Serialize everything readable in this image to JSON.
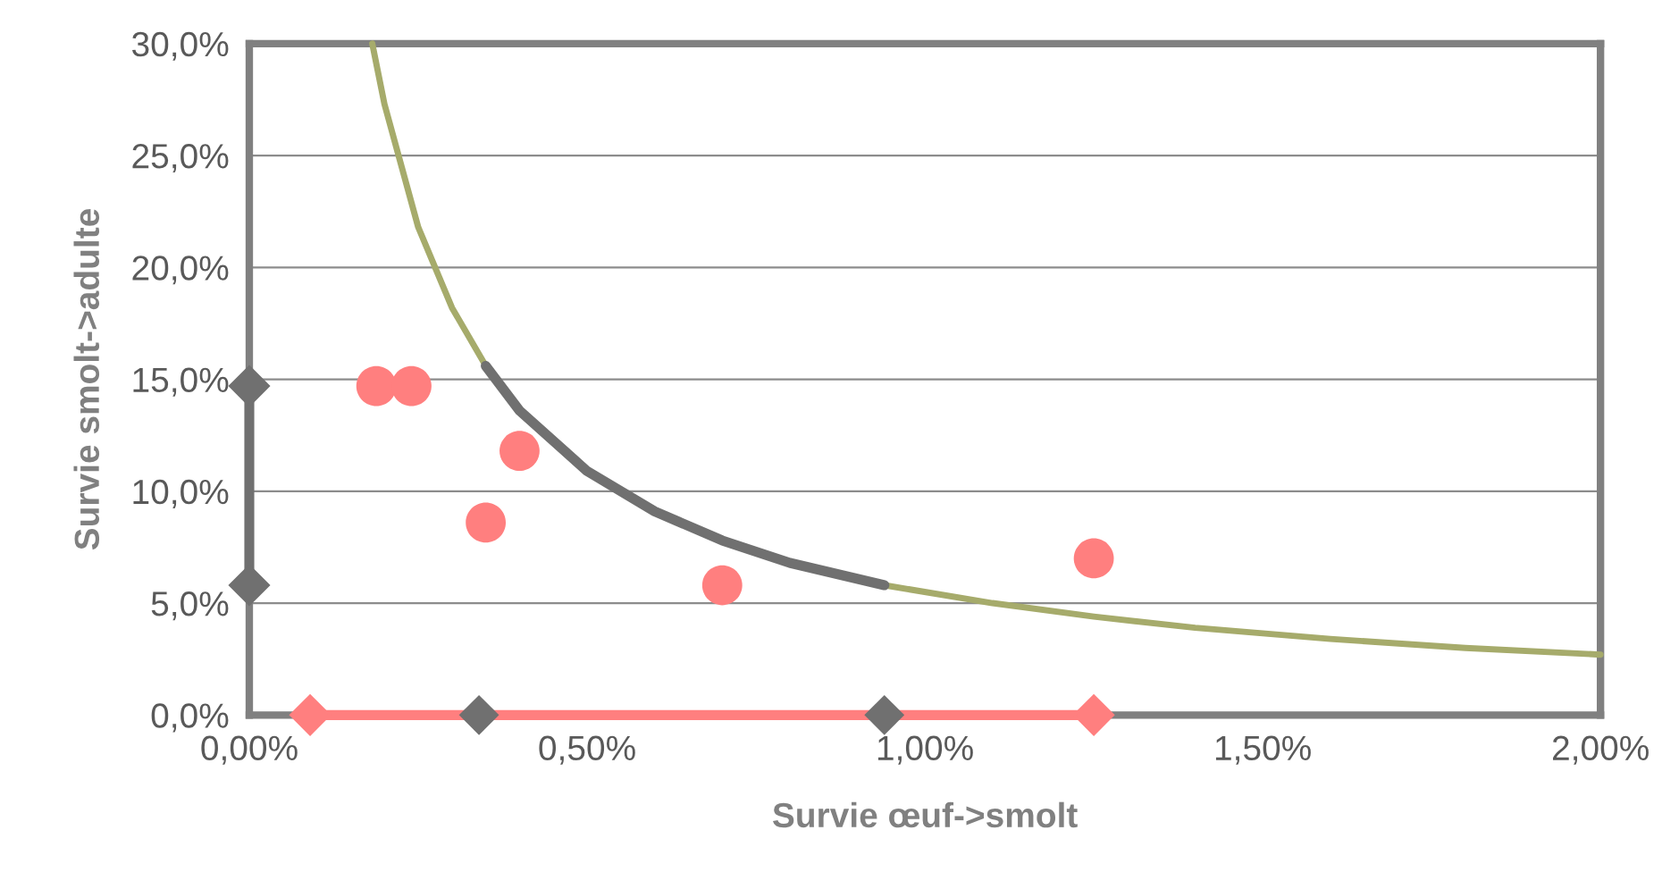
{
  "chart_data": {
    "type": "scatter",
    "xlabel": "Survie œuf->smolt",
    "ylabel": "Survie smolt->adulte",
    "xlim": [
      0,
      2
    ],
    "ylim": [
      0,
      30
    ],
    "xticks": [
      {
        "value": 0,
        "label": "0,00%"
      },
      {
        "value": 0.5,
        "label": "0,50%"
      },
      {
        "value": 1,
        "label": "1,00%"
      },
      {
        "value": 1.5,
        "label": "1,50%"
      },
      {
        "value": 2,
        "label": "2,00%"
      }
    ],
    "yticks": [
      {
        "value": 0,
        "label": "0,0%"
      },
      {
        "value": 5,
        "label": "5,0%"
      },
      {
        "value": 10,
        "label": "10,0%"
      },
      {
        "value": 15,
        "label": "15,0%"
      },
      {
        "value": 20,
        "label": "20,0%"
      },
      {
        "value": 25,
        "label": "25,0%"
      },
      {
        "value": 30,
        "label": "30,0%"
      }
    ],
    "grid": "y",
    "series": [
      {
        "type": "line",
        "color": "#a6ab6b",
        "marker": "none",
        "x": [
          0.182,
          0.2,
          0.25,
          0.3,
          0.35,
          0.4,
          0.5,
          0.6,
          0.7,
          0.8,
          0.94,
          1.1,
          1.25,
          1.4,
          1.6,
          1.8,
          2.0
        ],
        "values": [
          30.0,
          27.3,
          21.8,
          18.2,
          15.6,
          13.6,
          10.9,
          9.1,
          7.8,
          6.8,
          5.8,
          5.0,
          4.4,
          3.9,
          3.4,
          3.0,
          2.7
        ]
      },
      {
        "type": "line",
        "color": "#707070",
        "marker": "none",
        "x": [
          0.35,
          0.4,
          0.5,
          0.6,
          0.7,
          0.8,
          0.94
        ],
        "values": [
          15.6,
          13.6,
          10.9,
          9.1,
          7.8,
          6.8,
          5.8
        ]
      },
      {
        "type": "line",
        "color": "#707070",
        "marker": "diamond",
        "x": [
          0,
          0
        ],
        "values": [
          5.8,
          14.7
        ]
      },
      {
        "type": "line",
        "color": "#ff7f7f",
        "marker": "diamond",
        "x": [
          0.09,
          1.25
        ],
        "values": [
          0,
          0
        ]
      },
      {
        "type": "scatter",
        "color": "#707070",
        "marker": "diamond",
        "x": [
          0.34,
          0.94
        ],
        "values": [
          0,
          0
        ]
      },
      {
        "color": "#ff7f7f",
        "marker": "circle",
        "x": [
          0.188,
          0.24,
          0.35,
          0.4,
          0.7,
          1.25
        ],
        "values": [
          14.7,
          14.7,
          8.6,
          11.8,
          5.8,
          7.0
        ]
      }
    ]
  }
}
